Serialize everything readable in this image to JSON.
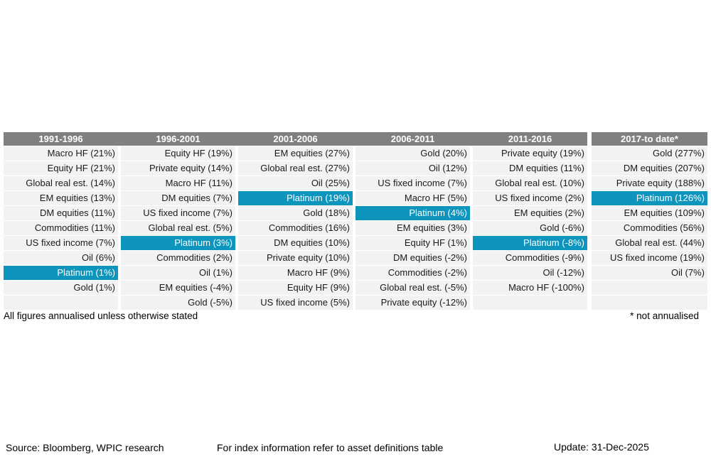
{
  "colors": {
    "header_bg": "#808080",
    "header_text": "#ffffff",
    "row_bg": "#f2f2f2",
    "highlight_bg": "#0e95be",
    "highlight_text": "#ffffff",
    "cell_text": "#1a1a1a",
    "note_text": "#000000"
  },
  "chart_data": {
    "type": "table",
    "description": "Asset class returns ranked high-to-low per period; Platinum rows highlighted",
    "value_unit": "%",
    "periods": [
      {
        "period": "1991-1996",
        "entries": [
          {
            "asset": "Macro HF",
            "return_pct": 21,
            "highlight": false
          },
          {
            "asset": "Equity HF",
            "return_pct": 21,
            "highlight": false
          },
          {
            "asset": "Global real est.",
            "return_pct": 14,
            "highlight": false
          },
          {
            "asset": "EM equities",
            "return_pct": 13,
            "highlight": false
          },
          {
            "asset": "DM equities",
            "return_pct": 11,
            "highlight": false
          },
          {
            "asset": "Commodities",
            "return_pct": 11,
            "highlight": false
          },
          {
            "asset": "US fixed income",
            "return_pct": 7,
            "highlight": false
          },
          {
            "asset": "Oil",
            "return_pct": 6,
            "highlight": false
          },
          {
            "asset": "Platinum",
            "return_pct": 1,
            "highlight": true
          },
          {
            "asset": "Gold",
            "return_pct": 1,
            "highlight": false
          },
          null
        ]
      },
      {
        "period": "1996-2001",
        "entries": [
          {
            "asset": "Equity HF",
            "return_pct": 19,
            "highlight": false
          },
          {
            "asset": "Private equity",
            "return_pct": 14,
            "highlight": false
          },
          {
            "asset": "Macro HF",
            "return_pct": 11,
            "highlight": false
          },
          {
            "asset": "DM equities",
            "return_pct": 7,
            "highlight": false
          },
          {
            "asset": "US fixed income",
            "return_pct": 7,
            "highlight": false
          },
          {
            "asset": "Global real est.",
            "return_pct": 5,
            "highlight": false
          },
          {
            "asset": "Platinum",
            "return_pct": 3,
            "highlight": true
          },
          {
            "asset": "Commodities",
            "return_pct": 2,
            "highlight": false
          },
          {
            "asset": "Oil",
            "return_pct": 1,
            "highlight": false
          },
          {
            "asset": "EM equities",
            "return_pct": -4,
            "highlight": false
          },
          {
            "asset": "Gold",
            "return_pct": -5,
            "highlight": false
          }
        ]
      },
      {
        "period": "2001-2006",
        "entries": [
          {
            "asset": "EM equities",
            "return_pct": 27,
            "highlight": false
          },
          {
            "asset": "Global real est.",
            "return_pct": 27,
            "highlight": false
          },
          {
            "asset": "Oil",
            "return_pct": 25,
            "highlight": false
          },
          {
            "asset": "Platinum",
            "return_pct": 19,
            "highlight": true
          },
          {
            "asset": "Gold",
            "return_pct": 18,
            "highlight": false
          },
          {
            "asset": "Commodities",
            "return_pct": 16,
            "highlight": false
          },
          {
            "asset": "DM equities",
            "return_pct": 10,
            "highlight": false
          },
          {
            "asset": "Private equity",
            "return_pct": 10,
            "highlight": false
          },
          {
            "asset": "Macro HF",
            "return_pct": 9,
            "highlight": false
          },
          {
            "asset": "Equity HF",
            "return_pct": 9,
            "highlight": false
          },
          {
            "asset": "US fixed income",
            "return_pct": 5,
            "highlight": false
          }
        ]
      },
      {
        "period": "2006-2011",
        "entries": [
          {
            "asset": "Gold",
            "return_pct": 20,
            "highlight": false
          },
          {
            "asset": "Oil",
            "return_pct": 12,
            "highlight": false
          },
          {
            "asset": "US fixed income",
            "return_pct": 7,
            "highlight": false
          },
          {
            "asset": "Macro HF",
            "return_pct": 5,
            "highlight": false
          },
          {
            "asset": "Platinum",
            "return_pct": 4,
            "highlight": true
          },
          {
            "asset": "EM equities",
            "return_pct": 3,
            "highlight": false
          },
          {
            "asset": "Equity HF",
            "return_pct": 1,
            "highlight": false
          },
          {
            "asset": "DM equities",
            "return_pct": -2,
            "highlight": false
          },
          {
            "asset": "Commodities",
            "return_pct": -2,
            "highlight": false
          },
          {
            "asset": "Global real est.",
            "return_pct": -5,
            "highlight": false
          },
          {
            "asset": "Private equity",
            "return_pct": -12,
            "highlight": false
          }
        ]
      },
      {
        "period": "2011-2016",
        "entries": [
          {
            "asset": "Private equity",
            "return_pct": 19,
            "highlight": false
          },
          {
            "asset": "DM equities",
            "return_pct": 11,
            "highlight": false
          },
          {
            "asset": "Global real est.",
            "return_pct": 10,
            "highlight": false
          },
          {
            "asset": "US fixed income",
            "return_pct": 2,
            "highlight": false
          },
          {
            "asset": "EM equities",
            "return_pct": 2,
            "highlight": false
          },
          {
            "asset": "Gold",
            "return_pct": -6,
            "highlight": false
          },
          {
            "asset": "Platinum",
            "return_pct": -8,
            "highlight": true
          },
          {
            "asset": "Commodities",
            "return_pct": -9,
            "highlight": false
          },
          {
            "asset": "Oil",
            "return_pct": -12,
            "highlight": false
          },
          {
            "asset": "Macro HF",
            "return_pct": -100,
            "highlight": false
          },
          null
        ]
      },
      {
        "period": "2017-to date*",
        "entries": [
          {
            "asset": "Gold",
            "return_pct": 277,
            "highlight": false
          },
          {
            "asset": "DM equities",
            "return_pct": 207,
            "highlight": false
          },
          {
            "asset": "Private equity",
            "return_pct": 188,
            "highlight": false
          },
          {
            "asset": "Platinum",
            "return_pct": 126,
            "highlight": true
          },
          {
            "asset": "EM equities",
            "return_pct": 109,
            "highlight": false
          },
          {
            "asset": "Commodities",
            "return_pct": 56,
            "highlight": false
          },
          {
            "asset": "Global real est.",
            "return_pct": 44,
            "highlight": false
          },
          {
            "asset": "US fixed income",
            "return_pct": 19,
            "highlight": false
          },
          {
            "asset": "Oil",
            "return_pct": 7,
            "highlight": false
          },
          null,
          null
        ]
      }
    ]
  },
  "notes": {
    "left": "All figures annualised unless otherwise stated",
    "right": "* not annualised"
  },
  "footer": {
    "source": "Source: Bloomberg, WPIC research",
    "index_info": "For index information refer to asset definitions table",
    "update": "Update: 31-Dec-2025"
  }
}
